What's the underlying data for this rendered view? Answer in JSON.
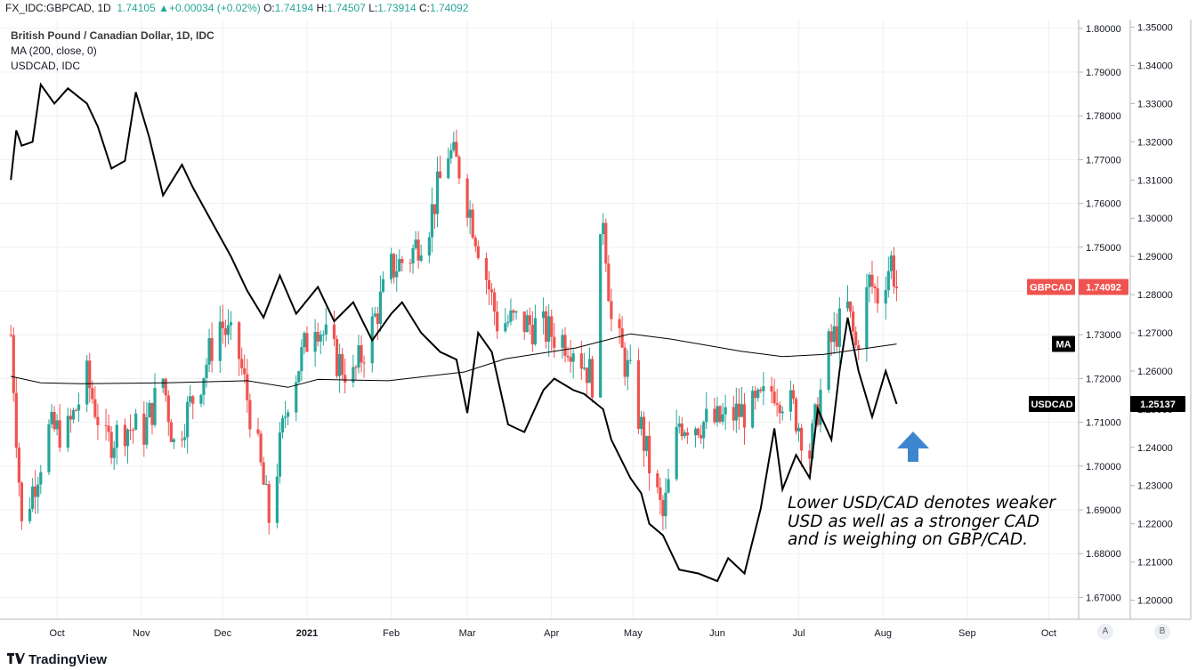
{
  "header": {
    "symbol": "FX_IDC:GBPCAD, 1D",
    "last": "1.74105",
    "change": "+0.00034 (+0.02%)",
    "o_label": "O:",
    "o": "1.74194",
    "h_label": "H:",
    "h": "1.74507",
    "l_label": "L:",
    "l": "1.73914",
    "c_label": "C:",
    "c": "1.74092"
  },
  "legend": {
    "title": "British Pound / Canadian Dollar, 1D, IDC",
    "ma": "MA (200, close, 0)",
    "compare": "USDCAD, IDC"
  },
  "annotation": [
    "Lower USD/CAD denotes weaker",
    "USD as well as a stronger CAD",
    "and is weighing on GBP/CAD."
  ],
  "tags": {
    "gbpcad_label": "GBPCAD",
    "gbpcad_value": "1.74092",
    "ma_label": "MA",
    "usdcad_label": "USDCAD",
    "usdcad_value": "1.25137"
  },
  "scale_buttons": {
    "a": "A",
    "b": "B"
  },
  "footer": {
    "logo": "TradingView"
  },
  "colors": {
    "up": "#26a69a",
    "down": "#ef5350",
    "ma": "#000000",
    "usdcad": "#000000",
    "arrow": "#3d86cf",
    "grid": "#eef0f3"
  },
  "chart_data": {
    "type": "candlestick",
    "title": "British Pound / Canadian Dollar, 1D, IDC",
    "x_ticks": [
      "Oct",
      "Nov",
      "Dec",
      "2021",
      "Feb",
      "Mar",
      "Apr",
      "May",
      "Jun",
      "Jul",
      "Aug",
      "Sep",
      "Oct"
    ],
    "y_left_ticks": [
      "1.80000",
      "1.79000",
      "1.78000",
      "1.77000",
      "1.76000",
      "1.75000",
      "1.74000",
      "1.73000",
      "1.72000",
      "1.71000",
      "1.70000",
      "1.69000",
      "1.68000",
      "1.67000"
    ],
    "y_left_range": [
      1.665,
      1.802
    ],
    "y_right_ticks": [
      "1.35000",
      "1.34000",
      "1.33000",
      "1.32000",
      "1.31000",
      "1.30000",
      "1.29000",
      "1.28000",
      "1.27000",
      "1.26000",
      "1.25000",
      "1.24000",
      "1.23000",
      "1.22000",
      "1.21000",
      "1.20000"
    ],
    "y_right_range": [
      1.195,
      1.352
    ],
    "gbpcad_anchors": [
      [
        "2020-09-14",
        1.73
      ],
      [
        "2020-09-18",
        1.686
      ],
      [
        "2020-09-28",
        1.708
      ],
      [
        "2020-10-05",
        1.708
      ],
      [
        "2020-10-12",
        1.72
      ],
      [
        "2020-10-19",
        1.705
      ],
      [
        "2020-10-26",
        1.709
      ],
      [
        "2020-11-02",
        1.708
      ],
      [
        "2020-11-09",
        1.72
      ],
      [
        "2020-11-13",
        1.705
      ],
      [
        "2020-11-23",
        1.72
      ],
      [
        "2020-11-30",
        1.733
      ],
      [
        "2020-12-07",
        1.725
      ],
      [
        "2020-12-14",
        1.703
      ],
      [
        "2020-12-18",
        1.688
      ],
      [
        "2020-12-25",
        1.716
      ],
      [
        "2021-01-04",
        1.734
      ],
      [
        "2021-01-11",
        1.725
      ],
      [
        "2021-01-18",
        1.72
      ],
      [
        "2021-01-25",
        1.732
      ],
      [
        "2021-02-01",
        1.745
      ],
      [
        "2021-02-08",
        1.748
      ],
      [
        "2021-02-15",
        1.756
      ],
      [
        "2021-02-22",
        1.772
      ],
      [
        "2021-02-26",
        1.768
      ],
      [
        "2021-03-05",
        1.751
      ],
      [
        "2021-03-12",
        1.733
      ],
      [
        "2021-03-19",
        1.733
      ],
      [
        "2021-03-26",
        1.732
      ],
      [
        "2021-04-02",
        1.73
      ],
      [
        "2021-04-09",
        1.728
      ],
      [
        "2021-04-16",
        1.72
      ],
      [
        "2021-04-20",
        1.758
      ],
      [
        "2021-04-23",
        1.733
      ],
      [
        "2021-04-30",
        1.72
      ],
      [
        "2021-05-07",
        1.7
      ],
      [
        "2021-05-12",
        1.688
      ],
      [
        "2021-05-18",
        1.71
      ],
      [
        "2021-05-25",
        1.71
      ],
      [
        "2021-06-01",
        1.71
      ],
      [
        "2021-06-08",
        1.712
      ],
      [
        "2021-06-15",
        1.713
      ],
      [
        "2021-06-22",
        1.718
      ],
      [
        "2021-06-29",
        1.713
      ],
      [
        "2021-07-05",
        1.703
      ],
      [
        "2021-07-12",
        1.727
      ],
      [
        "2021-07-19",
        1.736
      ],
      [
        "2021-07-22",
        1.727
      ],
      [
        "2021-07-27",
        1.742
      ],
      [
        "2021-07-30",
        1.739
      ],
      [
        "2021-08-04",
        1.747
      ],
      [
        "2021-08-06",
        1.7409
      ]
    ],
    "ma200": [
      [
        "2020-09-14",
        1.7205
      ],
      [
        "2020-09-25",
        1.719
      ],
      [
        "2020-10-10",
        1.7188
      ],
      [
        "2020-11-10",
        1.719
      ],
      [
        "2020-12-10",
        1.7195
      ],
      [
        "2020-12-25",
        1.718
      ],
      [
        "2021-01-05",
        1.7198
      ],
      [
        "2021-01-31",
        1.7195
      ],
      [
        "2021-02-28",
        1.7215
      ],
      [
        "2021-03-15",
        1.7245
      ],
      [
        "2021-04-10",
        1.727
      ],
      [
        "2021-04-30",
        1.7302
      ],
      [
        "2021-05-15",
        1.729
      ],
      [
        "2021-06-10",
        1.7262
      ],
      [
        "2021-06-25",
        1.725
      ],
      [
        "2021-07-10",
        1.7255
      ],
      [
        "2021-08-06",
        1.7279
      ]
    ],
    "usdcad": [
      [
        "2020-09-14",
        1.31
      ],
      [
        "2020-09-16",
        1.323
      ],
      [
        "2020-09-18",
        1.319
      ],
      [
        "2020-09-22",
        1.32
      ],
      [
        "2020-09-25",
        1.335
      ],
      [
        "2020-09-30",
        1.33
      ],
      [
        "2020-10-05",
        1.334
      ],
      [
        "2020-10-12",
        1.33
      ],
      [
        "2020-10-16",
        1.324
      ],
      [
        "2020-10-21",
        1.313
      ],
      [
        "2020-10-26",
        1.315
      ],
      [
        "2020-10-30",
        1.333
      ],
      [
        "2020-11-04",
        1.321
      ],
      [
        "2020-11-09",
        1.306
      ],
      [
        "2020-11-16",
        1.314
      ],
      [
        "2020-11-20",
        1.308
      ],
      [
        "2020-11-27",
        1.299
      ],
      [
        "2020-12-04",
        1.29
      ],
      [
        "2020-12-10",
        1.281
      ],
      [
        "2020-12-16",
        1.274
      ],
      [
        "2020-12-22",
        1.285
      ],
      [
        "2020-12-28",
        1.275
      ],
      [
        "2021-01-05",
        1.282
      ],
      [
        "2021-01-11",
        1.273
      ],
      [
        "2021-01-18",
        1.278
      ],
      [
        "2021-01-25",
        1.268
      ],
      [
        "2021-02-01",
        1.275
      ],
      [
        "2021-02-05",
        1.278
      ],
      [
        "2021-02-12",
        1.27
      ],
      [
        "2021-02-19",
        1.265
      ],
      [
        "2021-02-25",
        1.263
      ],
      [
        "2021-03-01",
        1.249
      ],
      [
        "2021-03-05",
        1.27
      ],
      [
        "2021-03-10",
        1.265
      ],
      [
        "2021-03-16",
        1.246
      ],
      [
        "2021-03-22",
        1.244
      ],
      [
        "2021-03-29",
        1.255
      ],
      [
        "2021-04-02",
        1.258
      ],
      [
        "2021-04-09",
        1.255
      ],
      [
        "2021-04-13",
        1.254
      ],
      [
        "2021-04-20",
        1.25
      ],
      [
        "2021-04-23",
        1.242
      ],
      [
        "2021-04-30",
        1.232
      ],
      [
        "2021-05-04",
        1.228
      ],
      [
        "2021-05-07",
        1.22
      ],
      [
        "2021-05-12",
        1.217
      ],
      [
        "2021-05-18",
        1.208
      ],
      [
        "2021-05-25",
        1.207
      ],
      [
        "2021-06-01",
        1.205
      ],
      [
        "2021-06-05",
        1.211
      ],
      [
        "2021-06-11",
        1.207
      ],
      [
        "2021-06-17",
        1.224
      ],
      [
        "2021-06-22",
        1.245
      ],
      [
        "2021-06-25",
        1.229
      ],
      [
        "2021-06-30",
        1.238
      ],
      [
        "2021-07-05",
        1.232
      ],
      [
        "2021-07-08",
        1.25
      ],
      [
        "2021-07-13",
        1.242
      ],
      [
        "2021-07-16",
        1.26
      ],
      [
        "2021-07-19",
        1.274
      ],
      [
        "2021-07-23",
        1.26
      ],
      [
        "2021-07-28",
        1.248
      ],
      [
        "2021-08-02",
        1.26
      ],
      [
        "2021-08-06",
        1.2514
      ]
    ]
  }
}
